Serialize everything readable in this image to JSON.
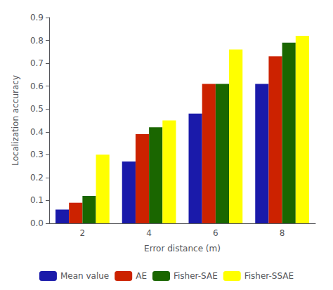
{
  "chart_data": {
    "type": "bar",
    "xlabel": "Error distance (m)",
    "ylabel": "Localization accuracy",
    "categories": [
      "2",
      "4",
      "6",
      "8"
    ],
    "series": [
      {
        "name": "Mean value",
        "color": "#1a1aaa",
        "values": [
          0.06,
          0.27,
          0.48,
          0.61
        ]
      },
      {
        "name": "AE",
        "color": "#cc2200",
        "values": [
          0.09,
          0.39,
          0.61,
          0.73
        ]
      },
      {
        "name": "Fisher-SAE",
        "color": "#1a6600",
        "values": [
          0.12,
          0.42,
          0.61,
          0.79
        ]
      },
      {
        "name": "Fisher-SSAE",
        "color": "#ffff00",
        "values": [
          0.3,
          0.45,
          0.76,
          0.82
        ]
      }
    ],
    "ylim": [
      0,
      0.9
    ],
    "yticks": [
      {
        "value": 0,
        "label": "0.0"
      },
      0.1,
      0.2,
      0.3,
      0.4,
      0.5,
      0.6,
      0.7,
      0.8,
      0.9
    ],
    "grid": false,
    "legend": "bottom"
  }
}
